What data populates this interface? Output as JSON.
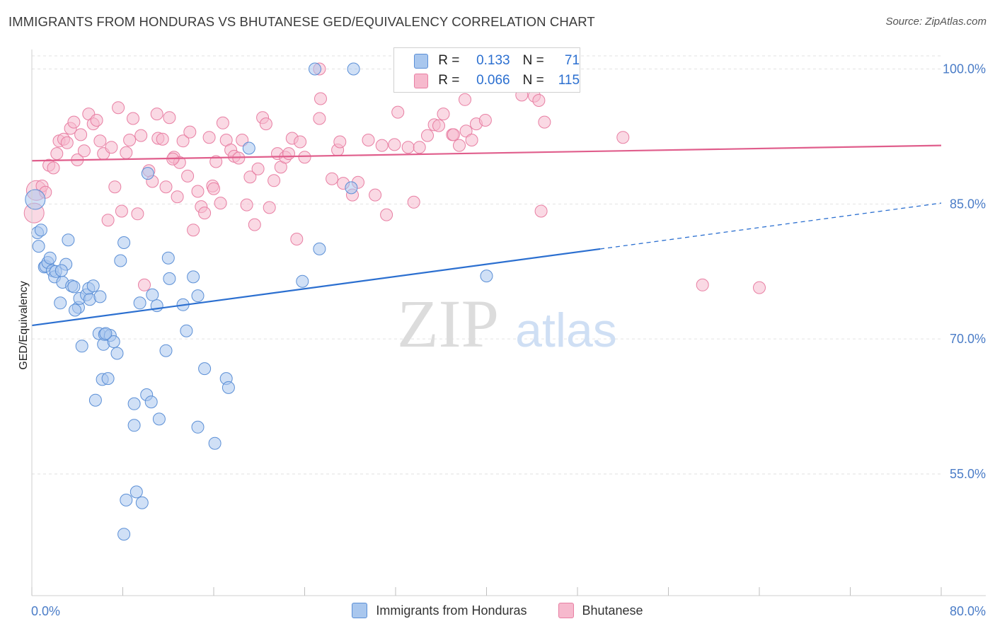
{
  "header": {
    "title": "IMMIGRANTS FROM HONDURAS VS BHUTANESE GED/EQUIVALENCY CORRELATION CHART",
    "source": "Source: ZipAtlas.com"
  },
  "watermark": {
    "zip": "ZIP",
    "atlas": "atlas"
  },
  "colors": {
    "blue": "#a9c7ee",
    "blue_stroke": "#5b8fd6",
    "blue_line": "#2b6fd0",
    "pink": "#f6b9cd",
    "pink_stroke": "#e87fa3",
    "pink_line": "#e05e8c",
    "tick_label": "#4a7cc7"
  },
  "stats": {
    "rows": [
      {
        "r_label": "R =",
        "r_value": "0.133",
        "n_label": "N =",
        "n_value": "71",
        "series": "blue"
      },
      {
        "r_label": "R =",
        "r_value": "0.066",
        "n_label": "N =",
        "n_value": "115",
        "series": "pink"
      }
    ]
  },
  "legend": {
    "items": [
      {
        "label": "Immigrants from Honduras",
        "series": "blue"
      },
      {
        "label": "Bhutanese",
        "series": "pink"
      }
    ]
  },
  "chart_data": {
    "type": "scatter",
    "title": "IMMIGRANTS FROM HONDURAS VS BHUTANESE GED/EQUIVALENCY CORRELATION CHART",
    "xlabel": "",
    "ylabel": "GED/Equivalency",
    "xlim": [
      0,
      80
    ],
    "ylim": [
      40,
      102
    ],
    "x_tick_labels": [
      "0.0%",
      "80.0%"
    ],
    "y_ticks": [
      55,
      70,
      85,
      100
    ],
    "y_tick_labels": [
      "55.0%",
      "70.0%",
      "85.0%",
      "100.0%"
    ],
    "grid": "horizontal dashed",
    "legend_position": "bottom-center",
    "series": [
      {
        "name": "Immigrants from Honduras",
        "color": "blue",
        "trend": {
          "x": [
            0,
            50
          ],
          "y": [
            71.5,
            80.0
          ],
          "dashed_extension": {
            "x": [
              50,
              80
            ],
            "y": [
              80.0,
              85.1
            ]
          }
        },
        "points": [
          [
            0.3,
            85.5
          ],
          [
            0.5,
            81.8
          ],
          [
            0.6,
            80.3
          ],
          [
            0.8,
            82.1
          ],
          [
            1.1,
            78.0
          ],
          [
            1.2,
            78.1
          ],
          [
            1.4,
            78.5
          ],
          [
            1.6,
            79.0
          ],
          [
            1.8,
            77.6
          ],
          [
            2.0,
            76.9
          ],
          [
            2.1,
            77.5
          ],
          [
            2.5,
            74.0
          ],
          [
            2.7,
            76.3
          ],
          [
            3.0,
            78.3
          ],
          [
            3.2,
            81.0
          ],
          [
            3.5,
            75.9
          ],
          [
            3.7,
            75.8
          ],
          [
            4.1,
            73.5
          ],
          [
            4.2,
            74.5
          ],
          [
            4.4,
            69.2
          ],
          [
            4.8,
            74.9
          ],
          [
            5.0,
            75.6
          ],
          [
            5.1,
            74.4
          ],
          [
            5.4,
            75.9
          ],
          [
            5.9,
            70.6
          ],
          [
            6.0,
            74.7
          ],
          [
            6.2,
            65.5
          ],
          [
            6.3,
            69.4
          ],
          [
            6.4,
            70.5
          ],
          [
            6.9,
            70.4
          ],
          [
            6.7,
            65.6
          ],
          [
            7.2,
            69.7
          ],
          [
            5.6,
            63.2
          ],
          [
            7.5,
            68.4
          ],
          [
            7.8,
            78.7
          ],
          [
            8.1,
            80.7
          ],
          [
            8.3,
            52.1
          ],
          [
            9.0,
            62.8
          ],
          [
            9.0,
            60.4
          ],
          [
            9.2,
            53.0
          ],
          [
            9.5,
            74.0
          ],
          [
            9.7,
            51.8
          ],
          [
            10.1,
            63.8
          ],
          [
            10.6,
            74.9
          ],
          [
            10.5,
            63.0
          ],
          [
            11.0,
            73.7
          ],
          [
            11.2,
            61.1
          ],
          [
            11.8,
            68.7
          ],
          [
            12.0,
            79.0
          ],
          [
            12.1,
            76.7
          ],
          [
            13.3,
            73.8
          ],
          [
            13.6,
            70.9
          ],
          [
            14.2,
            76.9
          ],
          [
            14.6,
            74.8
          ],
          [
            14.6,
            60.2
          ],
          [
            15.2,
            66.7
          ],
          [
            16.1,
            58.4
          ],
          [
            17.1,
            65.6
          ],
          [
            17.3,
            64.6
          ],
          [
            19.1,
            91.2
          ],
          [
            23.8,
            76.4
          ],
          [
            24.9,
            100.0
          ],
          [
            25.3,
            80.0
          ],
          [
            28.1,
            86.8
          ],
          [
            28.3,
            100.0
          ],
          [
            40.0,
            77.0
          ],
          [
            8.1,
            48.3
          ],
          [
            10.2,
            88.4
          ],
          [
            3.8,
            73.2
          ],
          [
            2.6,
            77.6
          ],
          [
            6.5,
            70.6
          ]
        ]
      },
      {
        "name": "Bhutanese",
        "color": "pink",
        "trend": {
          "x": [
            0,
            80
          ],
          "y": [
            89.8,
            91.5
          ]
        },
        "points": [
          [
            0.2,
            84.0
          ],
          [
            0.4,
            86.5
          ],
          [
            0.9,
            87.0
          ],
          [
            1.2,
            86.3
          ],
          [
            1.5,
            89.3
          ],
          [
            1.9,
            89.0
          ],
          [
            2.2,
            90.6
          ],
          [
            2.4,
            92.0
          ],
          [
            2.8,
            92.2
          ],
          [
            3.1,
            91.8
          ],
          [
            3.4,
            93.4
          ],
          [
            3.7,
            94.1
          ],
          [
            4.0,
            89.9
          ],
          [
            4.3,
            92.7
          ],
          [
            4.6,
            90.9
          ],
          [
            5.0,
            95.0
          ],
          [
            5.4,
            93.9
          ],
          [
            5.7,
            94.3
          ],
          [
            6.0,
            92.0
          ],
          [
            6.3,
            90.6
          ],
          [
            6.7,
            83.2
          ],
          [
            7.0,
            91.3
          ],
          [
            7.3,
            86.9
          ],
          [
            7.6,
            95.7
          ],
          [
            7.9,
            84.2
          ],
          [
            8.3,
            90.7
          ],
          [
            8.6,
            92.1
          ],
          [
            8.9,
            94.5
          ],
          [
            9.3,
            83.9
          ],
          [
            9.6,
            92.6
          ],
          [
            9.9,
            76.0
          ],
          [
            10.3,
            88.7
          ],
          [
            10.6,
            87.5
          ],
          [
            11.0,
            95.0
          ],
          [
            11.1,
            92.3
          ],
          [
            11.5,
            92.2
          ],
          [
            11.8,
            86.9
          ],
          [
            12.1,
            94.6
          ],
          [
            12.5,
            90.2
          ],
          [
            12.8,
            85.8
          ],
          [
            13.0,
            89.6
          ],
          [
            13.3,
            92.0
          ],
          [
            13.7,
            88.1
          ],
          [
            13.9,
            93.0
          ],
          [
            14.2,
            82.1
          ],
          [
            14.6,
            86.4
          ],
          [
            14.9,
            84.7
          ],
          [
            15.2,
            84.0
          ],
          [
            15.6,
            92.4
          ],
          [
            15.9,
            87.0
          ],
          [
            16.2,
            89.7
          ],
          [
            16.6,
            85.1
          ],
          [
            16.8,
            94.0
          ],
          [
            17.1,
            92.1
          ],
          [
            17.5,
            91.0
          ],
          [
            17.8,
            90.3
          ],
          [
            18.2,
            90.1
          ],
          [
            18.5,
            92.1
          ],
          [
            18.9,
            84.9
          ],
          [
            19.2,
            88.0
          ],
          [
            19.6,
            82.7
          ],
          [
            19.9,
            88.9
          ],
          [
            20.3,
            94.6
          ],
          [
            20.6,
            93.9
          ],
          [
            20.9,
            84.6
          ],
          [
            21.3,
            87.6
          ],
          [
            21.6,
            90.6
          ],
          [
            21.9,
            89.1
          ],
          [
            22.3,
            90.2
          ],
          [
            22.6,
            90.6
          ],
          [
            22.9,
            92.3
          ],
          [
            23.3,
            81.1
          ],
          [
            23.6,
            91.9
          ],
          [
            24.0,
            90.2
          ],
          [
            25.3,
            100.0
          ],
          [
            25.4,
            96.7
          ],
          [
            26.4,
            87.8
          ],
          [
            26.9,
            91.0
          ],
          [
            27.1,
            91.9
          ],
          [
            27.4,
            87.3
          ],
          [
            28.2,
            86.0
          ],
          [
            28.7,
            87.4
          ],
          [
            29.6,
            92.1
          ],
          [
            30.2,
            86.0
          ],
          [
            30.8,
            91.5
          ],
          [
            31.2,
            83.8
          ],
          [
            31.9,
            91.6
          ],
          [
            32.2,
            95.2
          ],
          [
            33.1,
            91.3
          ],
          [
            33.6,
            85.2
          ],
          [
            34.1,
            91.3
          ],
          [
            34.8,
            92.6
          ],
          [
            35.4,
            93.8
          ],
          [
            35.8,
            93.7
          ],
          [
            36.2,
            95.0
          ],
          [
            37.0,
            92.7
          ],
          [
            37.6,
            91.5
          ],
          [
            38.2,
            93.1
          ],
          [
            38.7,
            92.1
          ],
          [
            39.1,
            93.9
          ],
          [
            39.9,
            94.3
          ],
          [
            42.7,
            100.0
          ],
          [
            43.1,
            97.1
          ],
          [
            44.2,
            97.0
          ],
          [
            44.6,
            96.5
          ],
          [
            45.1,
            94.1
          ],
          [
            44.8,
            84.2
          ],
          [
            52.0,
            92.4
          ],
          [
            59.0,
            76.0
          ],
          [
            64.0,
            75.7
          ],
          [
            37.1,
            92.7
          ],
          [
            38.1,
            96.6
          ],
          [
            25.3,
            94.5
          ],
          [
            12.4,
            90.0
          ],
          [
            16.0,
            86.7
          ]
        ]
      }
    ]
  }
}
